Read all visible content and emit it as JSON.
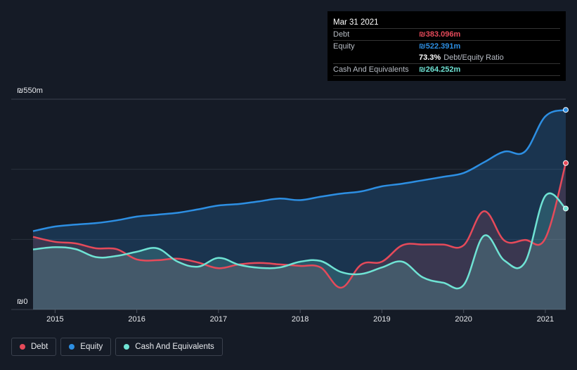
{
  "colors": {
    "debt": "#e64a5a",
    "equity": "#2d8fe3",
    "cash": "#6fe3d4",
    "grid": "#2a313d",
    "background": "#151b26"
  },
  "tooltip": {
    "date": "Mar 31 2021",
    "debt_label": "Debt",
    "debt_value": "₪383.096m",
    "equity_label": "Equity",
    "equity_value": "₪522.391m",
    "ratio_value": "73.3%",
    "ratio_label": "Debt/Equity Ratio",
    "cash_label": "Cash And Equivalents",
    "cash_value": "₪264.252m"
  },
  "legend": [
    {
      "label": "Debt",
      "color": "#e64a5a"
    },
    {
      "label": "Equity",
      "color": "#2d8fe3"
    },
    {
      "label": "Cash And Equivalents",
      "color": "#6fe3d4"
    }
  ],
  "chart_data": {
    "type": "area",
    "y_top_label": "₪550m",
    "y_bottom_label": "₪0",
    "ylim": [
      0,
      550
    ],
    "xlim": [
      2014.73,
      2021.25
    ],
    "x_ticks": [
      {
        "label": "2015",
        "value": 2015
      },
      {
        "label": "2016",
        "value": 2016
      },
      {
        "label": "2017",
        "value": 2017
      },
      {
        "label": "2018",
        "value": 2018
      },
      {
        "label": "2019",
        "value": 2019
      },
      {
        "label": "2020",
        "value": 2020
      },
      {
        "label": "2021",
        "value": 2021
      }
    ],
    "grid": true,
    "series": [
      {
        "name": "Equity",
        "key": "equity",
        "x": [
          2014.73,
          2015.0,
          2015.25,
          2015.5,
          2015.75,
          2016.0,
          2016.25,
          2016.5,
          2016.75,
          2017.0,
          2017.25,
          2017.5,
          2017.75,
          2018.0,
          2018.25,
          2018.5,
          2018.75,
          2019.0,
          2019.25,
          2019.5,
          2019.75,
          2020.0,
          2020.25,
          2020.5,
          2020.75,
          2021.0,
          2021.25
        ],
        "values": [
          205,
          217,
          222,
          226,
          233,
          243,
          248,
          253,
          262,
          272,
          276,
          283,
          290,
          286,
          295,
          303,
          309,
          322,
          329,
          338,
          347,
          357,
          385,
          413,
          413,
          505,
          522
        ]
      },
      {
        "name": "Debt",
        "key": "debt",
        "x": [
          2014.73,
          2015.0,
          2015.25,
          2015.5,
          2015.75,
          2016.0,
          2016.25,
          2016.5,
          2016.75,
          2017.0,
          2017.25,
          2017.5,
          2017.75,
          2018.0,
          2018.25,
          2018.5,
          2018.75,
          2019.0,
          2019.25,
          2019.5,
          2019.75,
          2020.0,
          2020.25,
          2020.5,
          2020.75,
          2021.0,
          2021.25
        ],
        "values": [
          190,
          177,
          173,
          160,
          158,
          131,
          129,
          133,
          123,
          108,
          118,
          122,
          118,
          114,
          110,
          57,
          118,
          125,
          168,
          170,
          170,
          168,
          257,
          180,
          182,
          186,
          383
        ]
      },
      {
        "name": "Cash And Equivalents",
        "key": "cash",
        "x": [
          2014.73,
          2015.0,
          2015.25,
          2015.5,
          2015.75,
          2016.0,
          2016.25,
          2016.5,
          2016.75,
          2017.0,
          2017.25,
          2017.5,
          2017.75,
          2018.0,
          2018.25,
          2018.5,
          2018.75,
          2019.0,
          2019.25,
          2019.5,
          2019.75,
          2020.0,
          2020.25,
          2020.5,
          2020.75,
          2021.0,
          2021.25
        ],
        "values": [
          157,
          163,
          158,
          137,
          140,
          151,
          160,
          125,
          112,
          135,
          117,
          109,
          110,
          125,
          127,
          98,
          93,
          110,
          125,
          84,
          70,
          64,
          193,
          128,
          123,
          297,
          264
        ]
      }
    ]
  }
}
